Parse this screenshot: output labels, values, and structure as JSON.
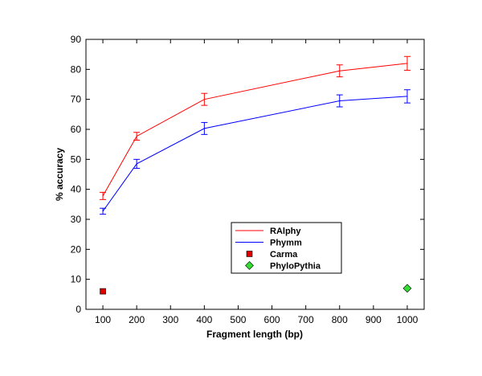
{
  "chart_data": {
    "type": "line",
    "xlabel": "Fragment length (bp)",
    "ylabel": "% accuracy",
    "xlim": [
      50,
      1050
    ],
    "ylim": [
      0,
      90
    ],
    "xticks": [
      100,
      200,
      300,
      400,
      500,
      600,
      700,
      800,
      900,
      1000
    ],
    "yticks": [
      0,
      10,
      20,
      30,
      40,
      50,
      60,
      70,
      80,
      90
    ],
    "grid": false,
    "legend_position": "bottom-center",
    "series": [
      {
        "name": "RAlphy",
        "kind": "line",
        "color": "#ff0000",
        "x": [
          100,
          200,
          400,
          800,
          1000
        ],
        "y": [
          37.8,
          57.7,
          70.0,
          79.5,
          82.0
        ],
        "err": [
          1.2,
          1.3,
          2.0,
          2.0,
          2.3
        ]
      },
      {
        "name": "Phymm",
        "kind": "line",
        "color": "#0000ff",
        "x": [
          100,
          200,
          400,
          800,
          1000
        ],
        "y": [
          32.7,
          48.5,
          60.3,
          69.5,
          71.0
        ],
        "err": [
          1.0,
          1.5,
          2.0,
          2.0,
          2.2
        ]
      },
      {
        "name": "Carma",
        "kind": "marker",
        "marker": "square",
        "color": "#dd0000",
        "x": [
          100
        ],
        "y": [
          6.0
        ]
      },
      {
        "name": "PhyloPythia",
        "kind": "marker",
        "marker": "diamond",
        "color": "#33dd33",
        "x": [
          1000
        ],
        "y": [
          7.0
        ]
      }
    ]
  }
}
